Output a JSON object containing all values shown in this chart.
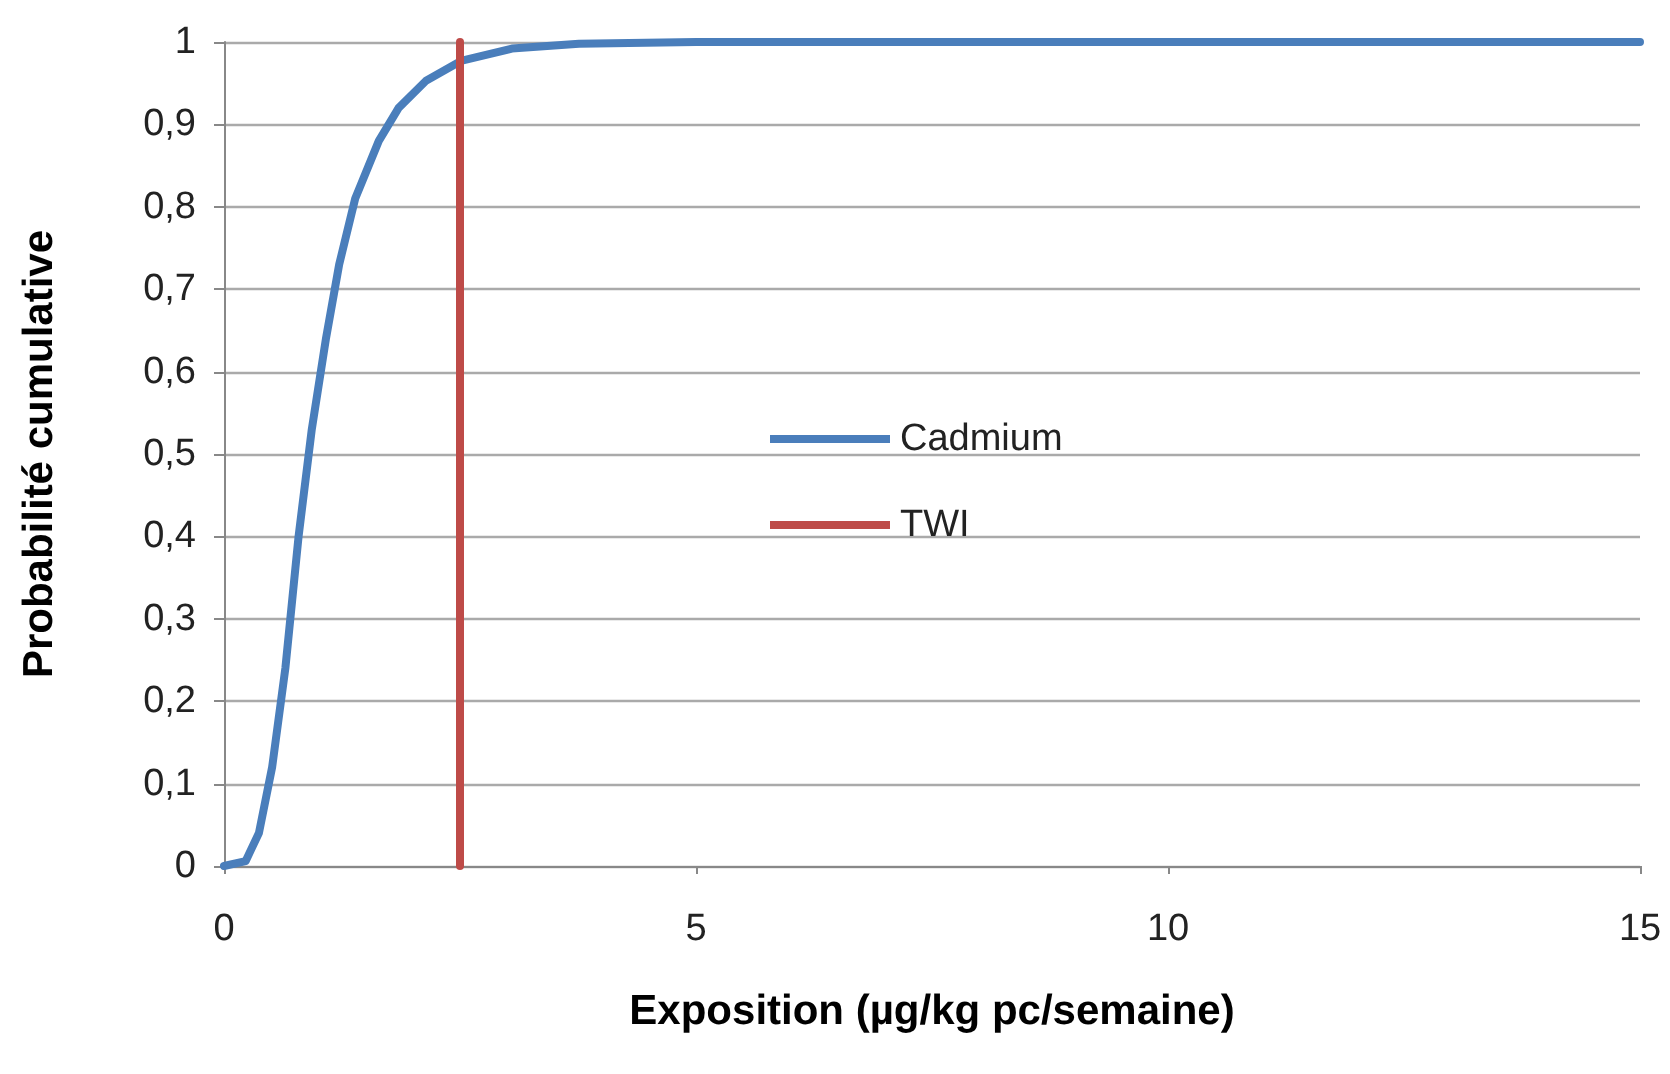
{
  "chart_data": {
    "type": "line",
    "xlabel": "Exposition (µg/kg pc/semaine)",
    "ylabel": "Probabilité cumulative",
    "xlim": [
      0,
      15
    ],
    "xticks": [
      0,
      5,
      10,
      15
    ],
    "ylim": [
      0,
      1
    ],
    "yticks": [
      {
        "value": 0,
        "label": "0"
      },
      {
        "value": 0.1,
        "label": "0,1"
      },
      {
        "value": 0.2,
        "label": "0,2"
      },
      {
        "value": 0.3,
        "label": "0,3"
      },
      {
        "value": 0.4,
        "label": "0,4"
      },
      {
        "value": 0.5,
        "label": "0,5"
      },
      {
        "value": 0.6,
        "label": "0,6"
      },
      {
        "value": 0.7,
        "label": "0,7"
      },
      {
        "value": 0.8,
        "label": "0,8"
      },
      {
        "value": 0.9,
        "label": "0,9"
      },
      {
        "value": 1,
        "label": "1"
      }
    ],
    "grid": "y",
    "legend": "center",
    "marker": "none",
    "line_style": "solid",
    "series": [
      {
        "name": "Cadmium",
        "color": "#4a7ebb",
        "x": [
          0,
          0.23,
          0.37,
          0.51,
          0.65,
          0.79,
          0.93,
          1.08,
          1.22,
          1.39,
          1.64,
          1.85,
          2.14,
          2.51,
          3.05,
          3.76,
          5,
          10,
          15
        ],
        "values": [
          0,
          0.006,
          0.04,
          0.12,
          0.24,
          0.4,
          0.53,
          0.64,
          0.73,
          0.81,
          0.88,
          0.92,
          0.953,
          0.977,
          0.992,
          0.998,
          1,
          1,
          1
        ]
      },
      {
        "name": "TWI",
        "color": "#be4b48",
        "x": [
          2.5,
          2.5
        ],
        "values": [
          0,
          1
        ]
      }
    ]
  }
}
